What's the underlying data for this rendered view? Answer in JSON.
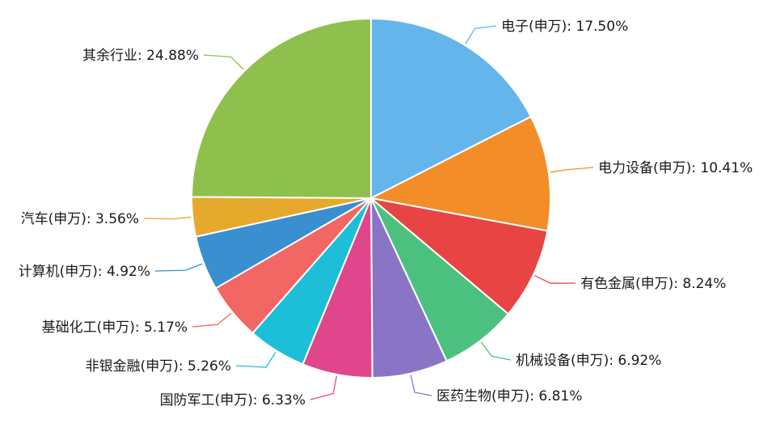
{
  "chart_data": {
    "type": "pie",
    "title": "",
    "start": "top",
    "direction": "clockwise",
    "legend": "none",
    "slices": [
      {
        "label": "电子(申万): 17.50%",
        "value": 17.5,
        "color": "#63b5ec"
      },
      {
        "label": "电力设备(申万): 10.41%",
        "value": 10.41,
        "color": "#f38d28"
      },
      {
        "label": "有色金属(申万): 8.24%",
        "value": 8.24,
        "color": "#e84444"
      },
      {
        "label": "机械设备(申万): 6.92%",
        "value": 6.92,
        "color": "#4cc17f"
      },
      {
        "label": "医药生物(申万): 6.81%",
        "value": 6.81,
        "color": "#8a74c6"
      },
      {
        "label": "国防军工(申万): 6.33%",
        "value": 6.33,
        "color": "#e0468c"
      },
      {
        "label": "非银金融(申万): 5.26%",
        "value": 5.26,
        "color": "#1dbfd8"
      },
      {
        "label": "基础化工(申万): 5.17%",
        "value": 5.17,
        "color": "#f26663"
      },
      {
        "label": "计算机(申万): 4.92%",
        "value": 4.92,
        "color": "#3a8fd0"
      },
      {
        "label": "汽车(申万): 3.56%",
        "value": 3.56,
        "color": "#e5aa2c"
      },
      {
        "label": "其余行业: 24.88%",
        "value": 24.88,
        "color": "#8fc04e"
      }
    ]
  }
}
